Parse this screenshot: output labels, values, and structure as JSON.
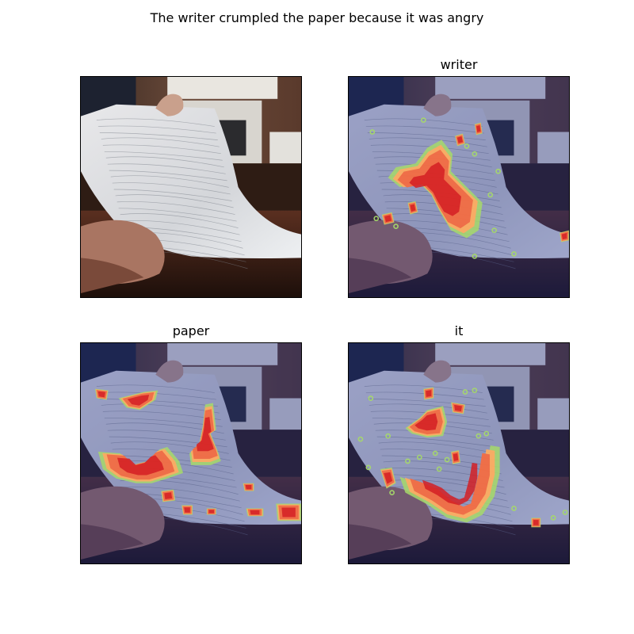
{
  "figure": {
    "title": "The writer crumpled the paper because it was angry",
    "panels": [
      {
        "id": "original",
        "title": "",
        "overlay": false
      },
      {
        "id": "writer",
        "title": "writer",
        "overlay": true
      },
      {
        "id": "paper",
        "title": "paper",
        "overlay": true
      },
      {
        "id": "it",
        "title": "it",
        "overlay": true
      }
    ],
    "colormap": {
      "hot": "#d7191c",
      "warm": "#f46d43",
      "mid": "#fdae61",
      "edge": "#a6d96a",
      "tint": "#3b4cc0"
    }
  }
}
